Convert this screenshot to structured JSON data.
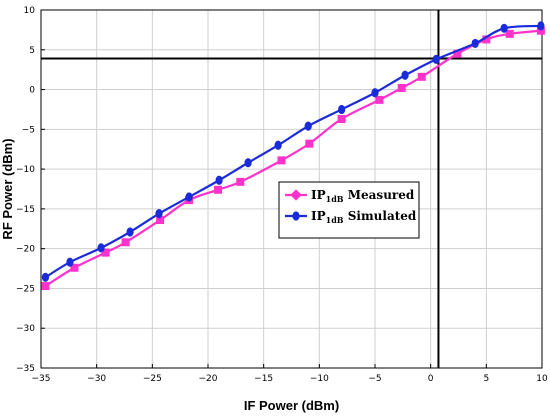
{
  "chart_data": {
    "type": "line",
    "xlabel": "IF Power (dBm)",
    "ylabel": "RF Power (dBm)",
    "xlim": [
      -35,
      10
    ],
    "ylim": [
      -35,
      10
    ],
    "x_ticks": [
      -35,
      -30,
      -25,
      -20,
      -15,
      -10,
      -5,
      0,
      5,
      10
    ],
    "y_ticks": [
      10,
      5,
      0,
      -5,
      -10,
      -15,
      -20,
      -25,
      -30,
      -35
    ],
    "grid": true,
    "legend_position": "center-right",
    "reference_lines": {
      "vertical_x": 0.7,
      "horizontal_y": 3.9
    },
    "series": [
      {
        "legend_main": "IP",
        "legend_sub": "1dB",
        "legend_rest": " Measured",
        "color": "#ff33cc",
        "marker": "square",
        "x": [
          -34.6,
          -32.0,
          -29.2,
          -27.4,
          -24.3,
          -21.7,
          -19.1,
          -17.1,
          -13.4,
          -10.9,
          -8.0,
          -4.6,
          -2.6,
          -0.8,
          2.4,
          5.0,
          7.1,
          9.9
        ],
        "y": [
          -24.7,
          -22.4,
          -20.5,
          -19.2,
          -16.4,
          -13.9,
          -12.6,
          -11.6,
          -8.9,
          -6.8,
          -3.7,
          -1.3,
          0.2,
          1.6,
          4.5,
          6.3,
          7.0,
          7.4
        ]
      },
      {
        "legend_main": "IP",
        "legend_sub": "1dB",
        "legend_rest": " Simulated",
        "color": "#1a2bd9",
        "marker": "circle",
        "x": [
          -34.6,
          -32.4,
          -29.6,
          -27.0,
          -24.4,
          -21.7,
          -19.0,
          -16.4,
          -13.7,
          -11.0,
          -8.0,
          -5.0,
          -2.3,
          0.5,
          4.0,
          6.6,
          9.9
        ],
        "y": [
          -23.6,
          -21.7,
          -19.9,
          -17.9,
          -15.6,
          -13.5,
          -11.4,
          -9.2,
          -7.0,
          -4.6,
          -2.5,
          -0.4,
          1.8,
          3.8,
          5.8,
          7.7,
          8.0
        ]
      }
    ]
  }
}
